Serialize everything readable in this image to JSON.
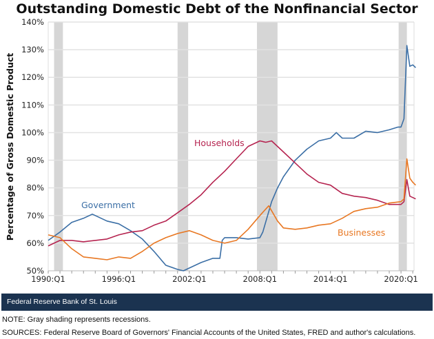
{
  "chart_data": {
    "type": "line",
    "title": "Outstanding Domestic Debt of the Nonfinancial Sector",
    "xlabel": "",
    "ylabel": "Percentage of Gross Domestic Product",
    "xlim": [
      1990,
      2021.3
    ],
    "ylim": [
      50,
      140
    ],
    "yticks": [
      50,
      60,
      70,
      80,
      90,
      100,
      110,
      120,
      130,
      140
    ],
    "ytick_labels": [
      "50%",
      "60%",
      "70%",
      "80%",
      "90%",
      "100%",
      "110%",
      "120%",
      "130%",
      "140%"
    ],
    "xticks": [
      1990,
      1996,
      2002,
      2008,
      2014,
      2020
    ],
    "xtick_labels": [
      "1990:Q1",
      "1996:Q1",
      "2002:Q1",
      "2008:Q1",
      "2014:Q1",
      "2020:Q1"
    ],
    "grid": true,
    "recessions": [
      [
        1990.5,
        1991.25
      ],
      [
        2001.0,
        2001.9
      ],
      [
        2007.75,
        2009.5
      ],
      [
        2019.8,
        2020.5
      ]
    ],
    "series": [
      {
        "name": "Government",
        "color": "#3a6ea5",
        "x": [
          1990,
          1991,
          1992,
          1993,
          1993.75,
          1995,
          1996,
          1997,
          1998,
          1999,
          2000,
          2001,
          2001.5,
          2002,
          2003,
          2004,
          2004.6,
          2004.8,
          2005,
          2006,
          2007,
          2008,
          2008.25,
          2009,
          2009.5,
          2010,
          2011,
          2012,
          2013,
          2014,
          2014.5,
          2015,
          2016,
          2017,
          2018,
          2019,
          2019.75,
          2020,
          2020.25,
          2020.5,
          2020.75,
          2021,
          2021.25
        ],
        "y": [
          61,
          64,
          67.5,
          69,
          70.5,
          68,
          67,
          64.5,
          61.5,
          57,
          52,
          50.5,
          50,
          51,
          53,
          54.5,
          54.5,
          61,
          62,
          62,
          61.5,
          62,
          64,
          75,
          80,
          84,
          90,
          94,
          97,
          98,
          100,
          98,
          98,
          100.5,
          100,
          101,
          102,
          102,
          105,
          131.5,
          124,
          124.5,
          123.5
        ]
      },
      {
        "name": "Households",
        "color": "#b5234f",
        "x": [
          1990,
          1991,
          1992,
          1993,
          1994,
          1995,
          1996,
          1997,
          1998,
          1999,
          2000,
          2001,
          2002,
          2003,
          2004,
          2005,
          2006,
          2007,
          2008,
          2008.5,
          2009,
          2010,
          2011,
          2012,
          2013,
          2014,
          2015,
          2016,
          2017,
          2018,
          2019,
          2020,
          2020.25,
          2020.5,
          2020.75,
          2021,
          2021.25
        ],
        "y": [
          59,
          61,
          61,
          60.5,
          61,
          61.5,
          63,
          64,
          64.5,
          66.5,
          68,
          71,
          74,
          77.5,
          82,
          86,
          90.5,
          95,
          97,
          96.5,
          97,
          93,
          89,
          85,
          82,
          81,
          78,
          77,
          76.5,
          75.5,
          74,
          74,
          75,
          83,
          77,
          76.5,
          76
        ]
      },
      {
        "name": "Businesses",
        "color": "#e87722",
        "x": [
          1990,
          1991,
          1992,
          1993,
          1994,
          1995,
          1996,
          1997,
          1998,
          1999,
          2000,
          2001,
          2002,
          2003,
          2004,
          2005,
          2006,
          2007,
          2008,
          2008.75,
          2009.5,
          2010,
          2011,
          2012,
          2013,
          2014,
          2015,
          2016,
          2017,
          2018,
          2019,
          2020,
          2020.25,
          2020.5,
          2020.75,
          2021,
          2021.25
        ],
        "y": [
          63,
          62,
          58,
          55,
          54.5,
          54,
          55,
          54.5,
          57,
          60,
          62,
          63.5,
          64.5,
          63,
          61,
          60,
          61,
          65,
          70,
          73.5,
          68,
          65.5,
          65,
          65.5,
          66.5,
          67,
          69,
          71.5,
          72.5,
          73,
          74.5,
          75,
          76,
          90.5,
          83.5,
          82,
          81
        ]
      }
    ]
  },
  "footer": {
    "brand": "Federal Reserve Bank of St. Louis",
    "note": "NOTE: Gray shading represents recessions.",
    "sources": "SOURCES: Federal Reserve Board of Governors' Financial Accounts of the United States, FRED and author's calculations."
  }
}
